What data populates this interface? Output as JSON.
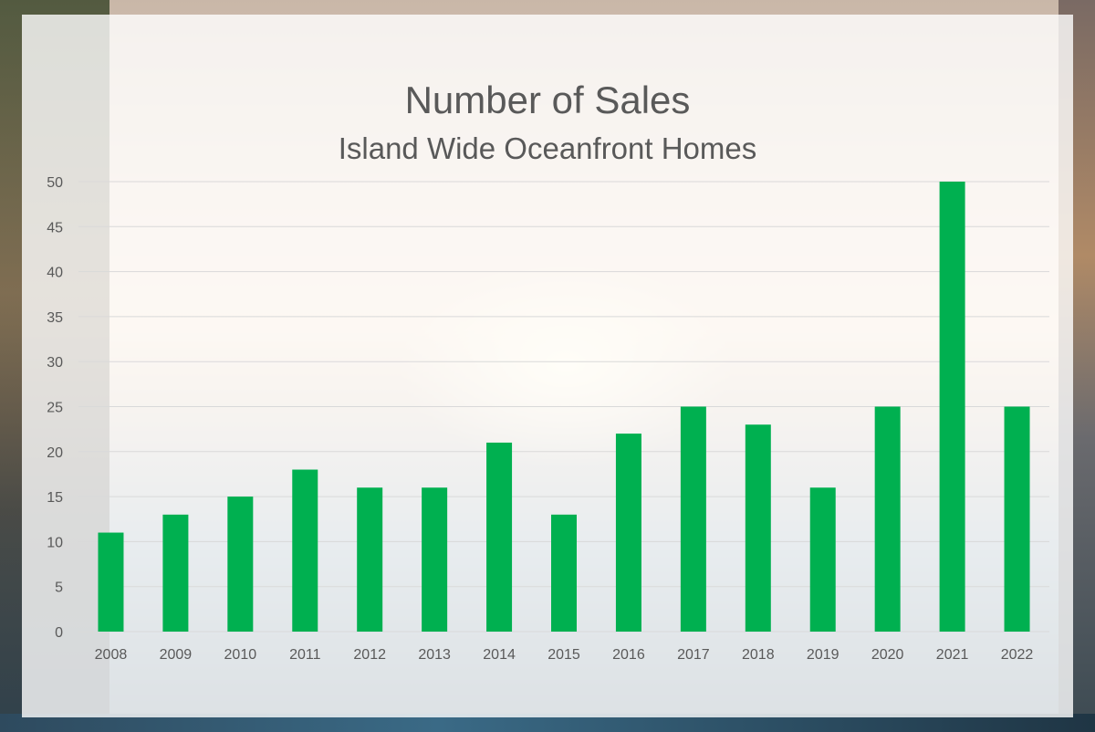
{
  "title": "Number of Sales",
  "subtitle": "Island Wide Oceanfront Homes",
  "colors": {
    "bar": "#00b050",
    "grid": "#d9d9d9",
    "text": "#595959"
  },
  "chart_data": {
    "type": "bar",
    "title": "Number of Sales",
    "subtitle": "Island Wide Oceanfront Homes",
    "xlabel": "",
    "ylabel": "",
    "categories": [
      "2008",
      "2009",
      "2010",
      "2011",
      "2012",
      "2013",
      "2014",
      "2015",
      "2016",
      "2017",
      "2018",
      "2019",
      "2020",
      "2021",
      "2022"
    ],
    "values": [
      11,
      13,
      15,
      18,
      16,
      16,
      21,
      13,
      22,
      25,
      23,
      16,
      25,
      50,
      25
    ],
    "ylim": [
      0,
      50
    ],
    "yticks": [
      0,
      5,
      10,
      15,
      20,
      25,
      30,
      35,
      40,
      45,
      50
    ],
    "grid": true,
    "legend": "none"
  }
}
